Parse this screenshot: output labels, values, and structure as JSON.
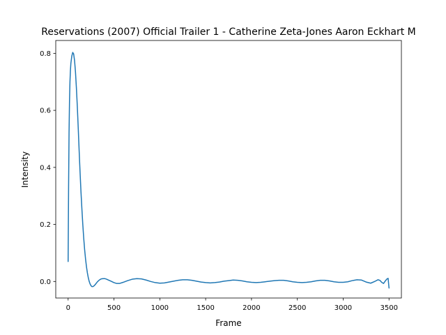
{
  "chart_data": {
    "type": "line",
    "title": "Reservations (2007) Official Trailer 1 - Catherine Zeta-Jones Aaron Eckhart M",
    "xlabel": "Frame",
    "ylabel": "Intensity",
    "xlim": [
      -135,
      3635
    ],
    "ylim": [
      -0.058,
      0.845
    ],
    "x_ticks": [
      0,
      500,
      1000,
      1500,
      2000,
      2500,
      3000,
      3500
    ],
    "y_ticks": [
      0.0,
      0.2,
      0.4,
      0.6,
      0.8
    ],
    "x_tick_labels": [
      "0",
      "500",
      "1000",
      "1500",
      "2000",
      "2500",
      "3000",
      "3500"
    ],
    "y_tick_labels": [
      "0.0",
      "0.2",
      "0.4",
      "0.6",
      "0.8"
    ],
    "grid": false,
    "series": [
      {
        "color": "#1f77b4",
        "x": [
          0,
          5,
          10,
          15,
          20,
          25,
          30,
          40,
          50,
          60,
          70,
          80,
          90,
          100,
          110,
          120,
          130,
          140,
          150,
          160,
          170,
          180,
          190,
          200,
          210,
          220,
          230,
          240,
          250,
          260,
          270,
          280,
          290,
          300,
          320,
          340,
          360,
          380,
          400,
          420,
          440,
          460,
          480,
          500,
          530,
          560,
          600,
          650,
          700,
          750,
          800,
          850,
          900,
          950,
          1000,
          1050,
          1100,
          1150,
          1200,
          1250,
          1300,
          1350,
          1400,
          1450,
          1500,
          1550,
          1600,
          1650,
          1700,
          1750,
          1800,
          1850,
          1900,
          1950,
          2000,
          2050,
          2100,
          2150,
          2200,
          2250,
          2300,
          2350,
          2400,
          2450,
          2500,
          2550,
          2600,
          2650,
          2700,
          2750,
          2800,
          2850,
          2900,
          2950,
          3000,
          3050,
          3100,
          3150,
          3200,
          3250,
          3300,
          3350,
          3380,
          3400,
          3420,
          3440,
          3460,
          3475,
          3490,
          3500
        ],
        "y": [
          0.07,
          0.33,
          0.52,
          0.63,
          0.7,
          0.74,
          0.765,
          0.79,
          0.803,
          0.798,
          0.775,
          0.735,
          0.68,
          0.615,
          0.54,
          0.46,
          0.385,
          0.315,
          0.255,
          0.2,
          0.152,
          0.112,
          0.079,
          0.052,
          0.03,
          0.013,
          0.0,
          -0.009,
          -0.015,
          -0.018,
          -0.018,
          -0.016,
          -0.013,
          -0.009,
          -0.001,
          0.005,
          0.009,
          0.01,
          0.01,
          0.008,
          0.005,
          0.002,
          -0.001,
          -0.004,
          -0.007,
          -0.007,
          -0.003,
          0.003,
          0.008,
          0.01,
          0.009,
          0.005,
          0.0,
          -0.004,
          -0.006,
          -0.005,
          -0.002,
          0.001,
          0.004,
          0.006,
          0.006,
          0.004,
          0.001,
          -0.002,
          -0.004,
          -0.005,
          -0.004,
          -0.002,
          0.001,
          0.003,
          0.005,
          0.004,
          0.002,
          -0.001,
          -0.003,
          -0.004,
          -0.003,
          -0.001,
          0.001,
          0.003,
          0.004,
          0.004,
          0.002,
          -0.001,
          -0.003,
          -0.004,
          -0.003,
          -0.001,
          0.002,
          0.004,
          0.004,
          0.002,
          -0.001,
          -0.003,
          -0.003,
          -0.001,
          0.003,
          0.006,
          0.005,
          -0.002,
          -0.006,
          0.001,
          0.006,
          0.004,
          -0.003,
          -0.007,
          0.002,
          0.008,
          0.011,
          -0.023
        ]
      }
    ]
  }
}
